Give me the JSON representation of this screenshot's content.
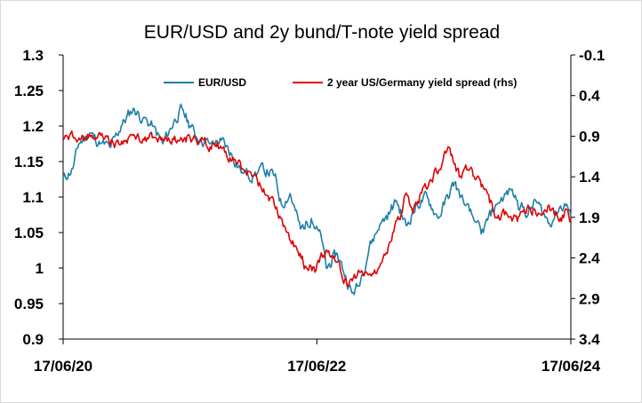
{
  "chart_data": {
    "type": "line",
    "title": "EUR/USD and 2y bund/T-note yield spread",
    "x_tick_labels": [
      "17/06/20",
      "17/06/22",
      "17/06/24"
    ],
    "x_ticks_date": [
      "2020-06-17",
      "2022-06-17",
      "2024-06-17"
    ],
    "xlim": [
      "2020-06-17",
      "2024-06-17"
    ],
    "y_left": {
      "lim": [
        0.9,
        1.3
      ],
      "ticks": [
        0.9,
        0.95,
        1,
        1.05,
        1.1,
        1.15,
        1.2,
        1.25,
        1.3
      ],
      "tick_labels": [
        "0.9",
        "0.95",
        "1",
        "1.05",
        "1.1",
        "1.15",
        "1.2",
        "1.25",
        "1.3"
      ]
    },
    "y_right": {
      "lim": [
        3.4,
        -0.1
      ],
      "inverted": true,
      "ticks": [
        -0.1,
        0.4,
        0.9,
        1.4,
        1.9,
        2.4,
        2.9,
        3.4
      ],
      "tick_labels": [
        "-0.1",
        "0.4",
        "0.9",
        "1.4",
        "1.9",
        "2.4",
        "2.9",
        "3.4"
      ]
    },
    "legend_position": "top",
    "grid": false,
    "series": [
      {
        "name": "EUR/USD",
        "axis": "left",
        "color": "#1F7FA8",
        "points": [
          [
            "2020-06-17",
            1.125
          ],
          [
            "2020-07-15",
            1.14
          ],
          [
            "2020-08-01",
            1.175
          ],
          [
            "2020-09-01",
            1.19
          ],
          [
            "2020-10-01",
            1.175
          ],
          [
            "2020-11-01",
            1.17
          ],
          [
            "2020-12-01",
            1.2
          ],
          [
            "2021-01-05",
            1.225
          ],
          [
            "2021-02-01",
            1.21
          ],
          [
            "2021-03-01",
            1.2
          ],
          [
            "2021-03-31",
            1.175
          ],
          [
            "2021-05-01",
            1.205
          ],
          [
            "2021-05-25",
            1.225
          ],
          [
            "2021-06-17",
            1.2
          ],
          [
            "2021-07-15",
            1.18
          ],
          [
            "2021-08-15",
            1.175
          ],
          [
            "2021-09-15",
            1.18
          ],
          [
            "2021-10-15",
            1.16
          ],
          [
            "2021-11-15",
            1.135
          ],
          [
            "2021-12-15",
            1.13
          ],
          [
            "2022-01-15",
            1.14
          ],
          [
            "2022-02-15",
            1.13
          ],
          [
            "2022-03-07",
            1.09
          ],
          [
            "2022-04-01",
            1.105
          ],
          [
            "2022-05-01",
            1.055
          ],
          [
            "2022-06-01",
            1.07
          ],
          [
            "2022-07-01",
            1.04
          ],
          [
            "2022-07-14",
            1.0
          ],
          [
            "2022-08-15",
            1.02
          ],
          [
            "2022-09-26",
            0.965
          ],
          [
            "2022-10-15",
            0.975
          ],
          [
            "2022-11-15",
            1.03
          ],
          [
            "2022-12-15",
            1.06
          ],
          [
            "2023-01-15",
            1.08
          ],
          [
            "2023-02-01",
            1.095
          ],
          [
            "2023-03-01",
            1.06
          ],
          [
            "2023-04-01",
            1.09
          ],
          [
            "2023-05-01",
            1.1
          ],
          [
            "2023-06-01",
            1.07
          ],
          [
            "2023-07-18",
            1.12
          ],
          [
            "2023-08-15",
            1.09
          ],
          [
            "2023-09-15",
            1.065
          ],
          [
            "2023-10-03",
            1.048
          ],
          [
            "2023-11-15",
            1.09
          ],
          [
            "2023-12-28",
            1.11
          ],
          [
            "2024-01-15",
            1.095
          ],
          [
            "2024-02-15",
            1.075
          ],
          [
            "2024-03-08",
            1.095
          ],
          [
            "2024-04-16",
            1.063
          ],
          [
            "2024-05-15",
            1.085
          ],
          [
            "2024-06-05",
            1.09
          ],
          [
            "2024-06-17",
            1.072
          ]
        ]
      },
      {
        "name": "2 year US/Germany yield spread (rhs)",
        "axis": "right",
        "color": "#E00000",
        "points": [
          [
            "2020-06-17",
            0.95
          ],
          [
            "2020-07-15",
            0.9
          ],
          [
            "2020-09-01",
            0.88
          ],
          [
            "2020-10-15",
            0.92
          ],
          [
            "2020-11-15",
            0.99
          ],
          [
            "2020-12-15",
            0.95
          ],
          [
            "2021-01-15",
            0.9
          ],
          [
            "2021-03-01",
            0.92
          ],
          [
            "2021-05-01",
            0.94
          ],
          [
            "2021-06-17",
            0.91
          ],
          [
            "2021-07-15",
            0.97
          ],
          [
            "2021-09-01",
            1.03
          ],
          [
            "2021-10-01",
            1.15
          ],
          [
            "2021-11-15",
            1.3
          ],
          [
            "2021-12-15",
            1.4
          ],
          [
            "2022-01-15",
            1.55
          ],
          [
            "2022-02-15",
            1.75
          ],
          [
            "2022-03-15",
            2.0
          ],
          [
            "2022-04-15",
            2.25
          ],
          [
            "2022-05-15",
            2.5
          ],
          [
            "2022-06-15",
            2.55
          ],
          [
            "2022-07-15",
            2.3
          ],
          [
            "2022-08-15",
            2.45
          ],
          [
            "2022-09-15",
            2.75
          ],
          [
            "2022-10-15",
            2.55
          ],
          [
            "2022-11-15",
            2.6
          ],
          [
            "2022-12-15",
            2.5
          ],
          [
            "2023-01-15",
            2.2
          ],
          [
            "2023-02-15",
            1.85
          ],
          [
            "2023-03-01",
            1.6
          ],
          [
            "2023-03-20",
            1.85
          ],
          [
            "2023-04-15",
            1.6
          ],
          [
            "2023-06-15",
            1.2
          ],
          [
            "2023-07-05",
            1.05
          ],
          [
            "2023-08-01",
            1.4
          ],
          [
            "2023-09-01",
            1.3
          ],
          [
            "2023-10-15",
            1.55
          ],
          [
            "2023-11-15",
            1.9
          ],
          [
            "2023-12-15",
            1.85
          ],
          [
            "2024-01-15",
            1.95
          ],
          [
            "2024-02-15",
            1.75
          ],
          [
            "2024-03-15",
            1.85
          ],
          [
            "2024-04-15",
            1.75
          ],
          [
            "2024-05-15",
            1.95
          ],
          [
            "2024-06-05",
            1.8
          ],
          [
            "2024-06-17",
            1.92
          ]
        ]
      }
    ]
  }
}
